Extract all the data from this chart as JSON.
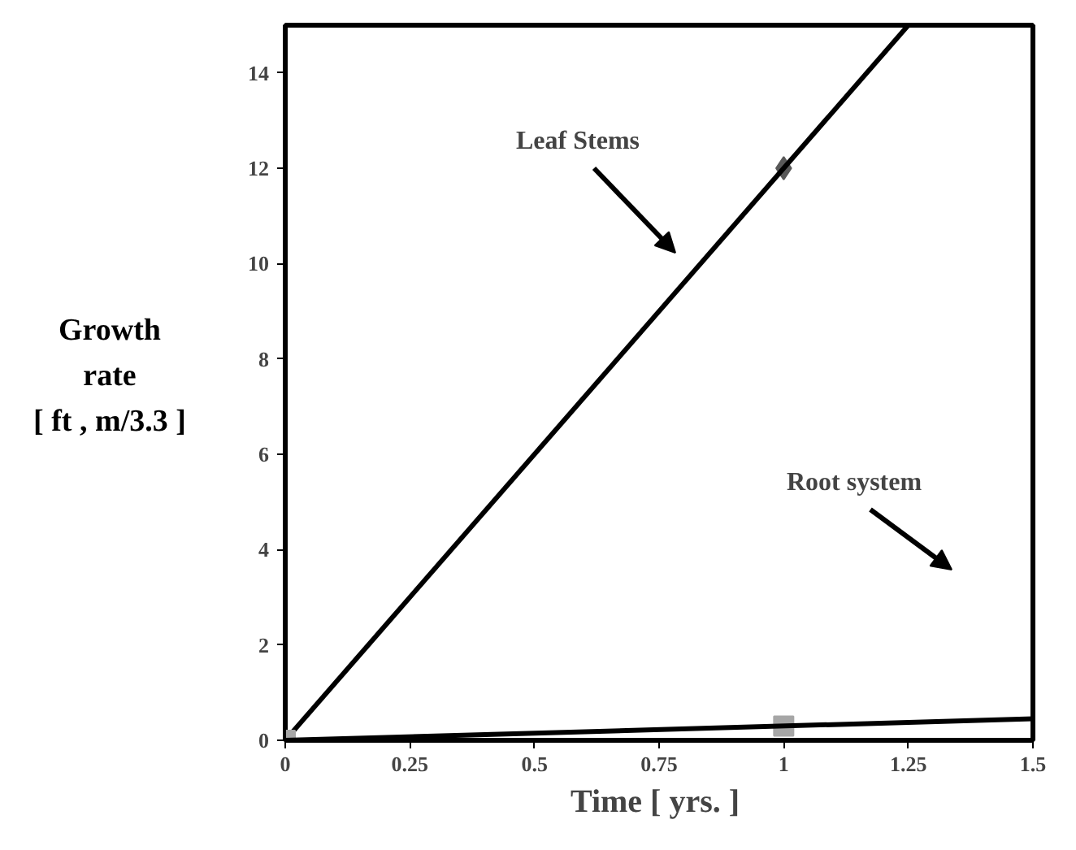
{
  "chart_data": {
    "type": "scatter",
    "xlabel": "Time  [ yrs. ]",
    "ylabel": "Growth\nrate\n[ ft , m/3.3 ]",
    "xlim": [
      0,
      1.5
    ],
    "ylim": [
      0,
      15
    ],
    "xticks": [
      0,
      0.25,
      0.5,
      0.75,
      1,
      1.25,
      1.5
    ],
    "yticks": [
      0,
      2,
      4,
      6,
      8,
      10,
      12,
      14
    ],
    "grid": false,
    "series": [
      {
        "marker": "diamond",
        "color": "#595959",
        "x": [
          1
        ],
        "values": [
          12
        ]
      },
      {
        "type": "line",
        "color": "#000000",
        "x": [
          0,
          1.25
        ],
        "values": [
          0,
          15
        ]
      },
      {
        "marker": "square",
        "color": "#a6a6a6",
        "x": [
          0,
          1
        ],
        "values": [
          0,
          0.3
        ]
      },
      {
        "type": "line",
        "color": "#000000",
        "x": [
          0,
          1.5
        ],
        "values": [
          0,
          0.45
        ]
      }
    ],
    "annotations": [
      "Leaf Stems",
      "Root system"
    ]
  }
}
